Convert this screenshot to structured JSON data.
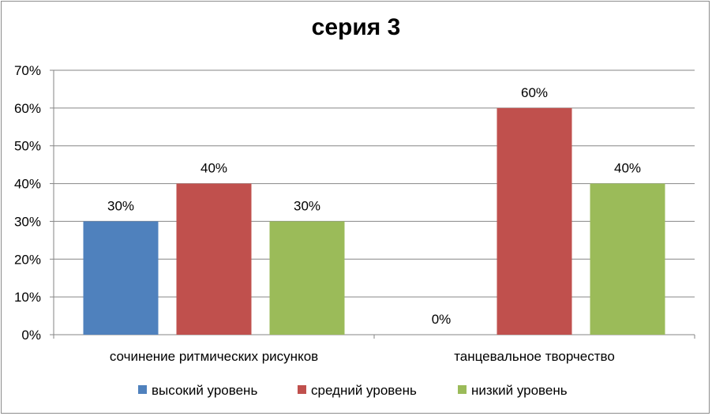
{
  "chart_data": {
    "type": "bar",
    "title": "серия 3",
    "categories": [
      "сочинение ритмических рисунков",
      "танцевальное творчество"
    ],
    "series": [
      {
        "name": "высокий уровень",
        "values": [
          30,
          0
        ],
        "labels": [
          "30%",
          "0%"
        ],
        "color": "#4f81bd"
      },
      {
        "name": "средний уровень",
        "values": [
          40,
          60
        ],
        "labels": [
          "40%",
          "60%"
        ],
        "color": "#c0504d"
      },
      {
        "name": "низкий уровень",
        "values": [
          30,
          40
        ],
        "labels": [
          "30%",
          "40%"
        ],
        "color": "#9bbb59"
      }
    ],
    "ylim": [
      0,
      70
    ],
    "yticks": [
      "0%",
      "10%",
      "20%",
      "30%",
      "40%",
      "50%",
      "60%",
      "70%"
    ],
    "grid": true,
    "legend": "bottom",
    "gridline_color": "#868686"
  }
}
